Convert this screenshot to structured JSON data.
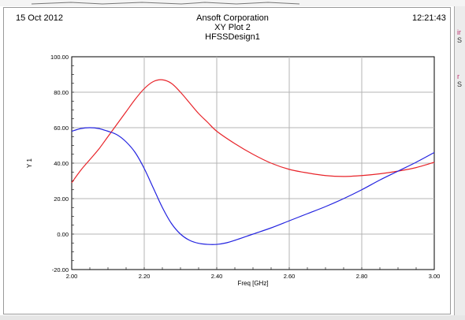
{
  "header": {
    "date": "15 Oct 2012",
    "time": "12:21:43",
    "company": "Ansoft Corporation",
    "plot_name": "XY Plot 2",
    "design_name": "HFSSDesign1"
  },
  "side_panel": {
    "glyphs": [
      "ir",
      "S",
      "r",
      "S"
    ]
  },
  "chart_data": {
    "type": "line",
    "title": "",
    "xlabel": "Freq [GHz]",
    "ylabel": "Y 1",
    "xlim": [
      2.0,
      3.0
    ],
    "ylim": [
      -20.0,
      100.0
    ],
    "x_ticks": [
      "2.00",
      "2.20",
      "2.40",
      "2.60",
      "2.80",
      "3.00"
    ],
    "y_ticks": [
      "100.00",
      "80.00",
      "60.00",
      "40.00",
      "20.00",
      "0.00",
      "-20.00"
    ],
    "grid": true,
    "colors": {
      "red": "#e8242a",
      "blue": "#2323e0",
      "grid": "#b4b4b4"
    },
    "series": [
      {
        "color": "red",
        "x": [
          2.0,
          2.025,
          2.05,
          2.075,
          2.1,
          2.125,
          2.15,
          2.175,
          2.2,
          2.225,
          2.25,
          2.275,
          2.3,
          2.325,
          2.35,
          2.375,
          2.4,
          2.45,
          2.5,
          2.55,
          2.6,
          2.65,
          2.7,
          2.75,
          2.8,
          2.85,
          2.9,
          2.95,
          3.0
        ],
        "y": [
          29,
          36,
          42,
          48,
          55,
          62,
          69,
          76,
          82,
          86,
          87,
          85,
          80,
          74,
          68,
          63,
          58,
          51,
          45,
          40,
          36.5,
          34.5,
          33,
          32.5,
          33,
          34,
          35.5,
          37.5,
          40.5
        ]
      },
      {
        "color": "blue",
        "x": [
          2.0,
          2.025,
          2.05,
          2.075,
          2.1,
          2.125,
          2.15,
          2.175,
          2.2,
          2.225,
          2.25,
          2.275,
          2.3,
          2.325,
          2.35,
          2.375,
          2.4,
          2.425,
          2.45,
          2.5,
          2.55,
          2.6,
          2.65,
          2.7,
          2.75,
          2.8,
          2.85,
          2.9,
          2.95,
          3.0
        ],
        "y": [
          58,
          59.5,
          60,
          59.5,
          58,
          56,
          52,
          46,
          37,
          26,
          15,
          6,
          0,
          -3.5,
          -5.2,
          -5.8,
          -5.8,
          -5,
          -3.5,
          0,
          3.5,
          7.5,
          11.5,
          15.5,
          20,
          25,
          30.5,
          35.5,
          40.5,
          46
        ]
      }
    ]
  }
}
